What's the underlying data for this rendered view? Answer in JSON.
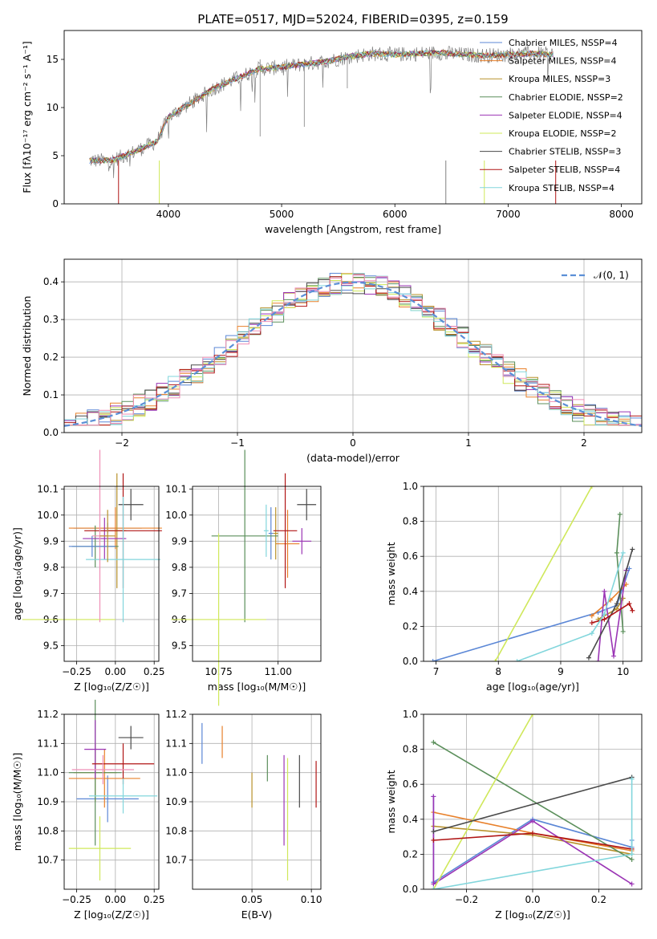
{
  "figure_title": "PLATE=0517, MJD=52024, FIBERID=0395, z=0.159",
  "colors": {
    "series": [
      "#5b87d6",
      "#e8802a",
      "#b8912a",
      "#5b8f5b",
      "#9b35b5",
      "#cfe85a",
      "#4a4a4a",
      "#b01515",
      "#82d6dc"
    ],
    "pink": "#ef8fb6",
    "gray": "#808080",
    "normal_curve": "#5b8fd6"
  },
  "chart_data": [
    {
      "type": "line",
      "title": "PLATE=0517, MJD=52024, FIBERID=0395, z=0.159",
      "xlabel": "wavelength [Angstrom, rest frame]",
      "ylabel": "Flux [fλ10⁻¹⁷ erg cm⁻² s⁻¹ A⁻¹]",
      "xlim": [
        3080,
        8180
      ],
      "ylim": [
        0,
        18
      ],
      "xticks": [
        "4000",
        "5000",
        "6000",
        "7000",
        "8000"
      ],
      "yticks": [
        "0",
        "5",
        "10",
        "15"
      ],
      "legend_position": "top-right",
      "legend": [
        "Chabrier MILES, N_SSP=4",
        "Salpeter MILES, N_SSP=4",
        "Kroupa MILES, N_SSP=3",
        "Chabrier ELODIE, N_SSP=2",
        "Salpeter ELODIE, N_SSP=4",
        "Kroupa ELODIE, N_SSP=2",
        "Chabrier STELIB, N_SSP=3",
        "Salpeter STELIB, N_SSP=4",
        "Kroupa STELIB, N_SSP=4"
      ],
      "spectrum_envelope": {
        "x": [
          3300,
          3500,
          3700,
          3900,
          4000,
          4200,
          4400,
          4600,
          4800,
          5000,
          5200,
          5400,
          5600,
          5800,
          6000,
          6200,
          6400,
          6600,
          6800,
          7000,
          7200,
          7400
        ],
        "y": [
          4.5,
          4.5,
          5.4,
          6.5,
          9.0,
          10.5,
          12.0,
          13.0,
          14.0,
          14.2,
          14.5,
          14.8,
          15.3,
          15.6,
          15.5,
          15.6,
          15.7,
          15.5,
          15.4,
          15.5,
          15.6,
          15.5
        ]
      }
    },
    {
      "type": "bar",
      "title": "",
      "xlabel": "(data-model)/error",
      "ylabel": "Normed distribution",
      "xlim": [
        -2.5,
        2.5
      ],
      "ylim": [
        0,
        0.46
      ],
      "xticks": [
        "−2",
        "−1",
        "0",
        "1",
        "2"
      ],
      "yticks": [
        "0.0",
        "0.1",
        "0.2",
        "0.3",
        "0.4"
      ],
      "legend": [
        "𝒩(0, 1)"
      ],
      "legend_position": "top-right",
      "bin_width": 0.1,
      "curve": "gaussian mean 0 sigma 1"
    },
    {
      "type": "scatter",
      "xlabel": "Z [log₁₀(Z/Z☉)]",
      "ylabel": "age  [log₁₀(age/yr)]",
      "xlim": [
        -0.33,
        0.28
      ],
      "ylim": [
        9.44,
        10.11
      ],
      "xticks": [
        "−0.25",
        "0.00",
        "0.25"
      ],
      "yticks": [
        "9.5",
        "9.6",
        "9.7",
        "9.8",
        "9.9",
        "10.0",
        "10.1"
      ],
      "crosses": [
        {
          "x": -0.05,
          "xerr": 0.22,
          "y": 9.95,
          "yerr": 0.02
        },
        {
          "x": 0.0,
          "xerr": 0.3,
          "y": 9.95,
          "yerr": 0.08
        },
        {
          "x": 0.01,
          "xerr": 0.06,
          "y": 9.94,
          "yerr": 0.22
        },
        {
          "x": -0.13,
          "xerr": 0.15,
          "y": 9.88,
          "yerr": 0.08
        },
        {
          "x": -0.07,
          "xerr": 0.14,
          "y": 9.91,
          "yerr": 0.08
        },
        {
          "x": -0.3,
          "xerr": 0.3,
          "y": 9.6,
          "yerr": 0.0
        },
        {
          "x": 0.1,
          "xerr": 0.08,
          "y": 10.04,
          "yerr": 0.06
        },
        {
          "x": 0.05,
          "xerr": 0.25,
          "y": 9.94,
          "yerr": 0.22
        },
        {
          "x": 0.05,
          "xerr": 0.24,
          "y": 9.83,
          "yerr": 0.24
        },
        {
          "x": -0.1,
          "xerr": 0.05,
          "y": 9.92,
          "yerr": 0.33
        },
        {
          "x": -0.15,
          "xerr": 0.15,
          "y": 9.88,
          "yerr": 0.04
        },
        {
          "x": -0.05,
          "xerr": 0.05,
          "y": 9.92,
          "yerr": 0.1
        }
      ]
    },
    {
      "type": "scatter",
      "xlabel": "mass [log₁₀(M/M☉)]",
      "ylabel": "",
      "xlim": [
        10.64,
        11.18
      ],
      "ylim": [
        9.44,
        10.11
      ],
      "xticks": [
        "10.75",
        "11.00"
      ],
      "yticks": [
        "9.5",
        "9.6",
        "9.7",
        "9.8",
        "9.9",
        "10.0",
        "10.1"
      ],
      "crosses": [
        {
          "x": 10.97,
          "xerr": 0.01,
          "y": 9.93,
          "yerr": 0.1
        },
        {
          "x": 11.04,
          "xerr": 0.05,
          "y": 9.89,
          "yerr": 0.13
        },
        {
          "x": 10.99,
          "xerr": 0.01,
          "y": 9.93,
          "yerr": 0.1
        },
        {
          "x": 10.86,
          "xerr": 0.14,
          "y": 9.92,
          "yerr": 0.33
        },
        {
          "x": 11.1,
          "xerr": 0.04,
          "y": 9.9,
          "yerr": 0.05
        },
        {
          "x": 10.75,
          "xerr": 0.2,
          "y": 9.6,
          "yerr": 0.33
        },
        {
          "x": 11.12,
          "xerr": 0.04,
          "y": 10.04,
          "yerr": 0.06
        },
        {
          "x": 11.03,
          "xerr": 0.05,
          "y": 9.94,
          "yerr": 0.22
        },
        {
          "x": 10.95,
          "xerr": 0.01,
          "y": 9.94,
          "yerr": 0.1
        }
      ]
    },
    {
      "type": "line",
      "xlabel": "age  [log₁₀(age/yr)]",
      "ylabel": "mass weight",
      "xlim": [
        6.8,
        10.3
      ],
      "ylim": [
        0,
        1.0
      ],
      "xticks": [
        "7",
        "8",
        "9",
        "10"
      ],
      "yticks": [
        "0.0",
        "0.2",
        "0.4",
        "0.6",
        "0.8",
        "1.0"
      ],
      "series": [
        {
          "x": [
            6.95,
            9.6,
            9.9,
            10.1
          ],
          "y": [
            0.0,
            0.28,
            0.32,
            0.53
          ]
        },
        {
          "x": [
            9.5,
            9.8,
            10.05
          ],
          "y": [
            0.26,
            0.35,
            0.44
          ]
        },
        {
          "x": [
            9.6,
            9.9,
            10.0
          ],
          "y": [
            0.24,
            0.3,
            0.36
          ]
        },
        {
          "x": [
            9.95,
            9.9,
            10.0
          ],
          "y": [
            0.84,
            0.62,
            0.17
          ]
        },
        {
          "x": [
            9.6,
            9.7,
            9.85,
            10.05
          ],
          "y": [
            0.0,
            0.4,
            0.03,
            0.52
          ]
        },
        {
          "x": [
            7.95,
            9.5
          ],
          "y": [
            0.0,
            1.0
          ]
        },
        {
          "x": [
            9.45,
            9.9,
            10.15
          ],
          "y": [
            0.02,
            0.33,
            0.64
          ]
        },
        {
          "x": [
            9.5,
            9.7,
            10.1,
            10.15
          ],
          "y": [
            0.22,
            0.24,
            0.33,
            0.29
          ]
        },
        {
          "x": [
            8.3,
            9.5,
            9.7,
            10.0
          ],
          "y": [
            0.0,
            0.16,
            0.27,
            0.62
          ]
        }
      ]
    },
    {
      "type": "scatter",
      "xlabel": "Z [log₁₀(Z/Z☉)]",
      "ylabel": "mass [log₁₀(M/M☉)]",
      "xlim": [
        -0.33,
        0.28
      ],
      "ylim": [
        10.6,
        11.2
      ],
      "xticks": [
        "−0.25",
        "0.00",
        "0.25"
      ],
      "yticks": [
        "10.7",
        "10.8",
        "10.9",
        "11.0",
        "11.1",
        "11.2"
      ],
      "crosses": [
        {
          "x": -0.05,
          "xerr": 0.2,
          "y": 10.91,
          "yerr": 0.08
        },
        {
          "x": -0.07,
          "xerr": 0.23,
          "y": 10.98,
          "yerr": 0.1
        },
        {
          "x": -0.13,
          "xerr": 0.14,
          "y": 11.0,
          "yerr": 0.1
        },
        {
          "x": -0.13,
          "xerr": 0.17,
          "y": 11.0,
          "yerr": 0.25
        },
        {
          "x": -0.13,
          "xerr": 0.07,
          "y": 11.08,
          "yerr": 0.1
        },
        {
          "x": -0.1,
          "xerr": 0.2,
          "y": 10.74,
          "yerr": 0.11
        },
        {
          "x": 0.1,
          "xerr": 0.08,
          "y": 11.12,
          "yerr": 0.04
        },
        {
          "x": 0.05,
          "xerr": 0.2,
          "y": 11.03,
          "yerr": 0.07
        },
        {
          "x": 0.05,
          "xerr": 0.22,
          "y": 10.92,
          "yerr": 0.06
        },
        {
          "x": -0.08,
          "xerr": 0.2,
          "y": 11.01,
          "yerr": 0.05
        }
      ]
    },
    {
      "type": "scatter",
      "xlabel": "E(B-V)",
      "ylabel": "",
      "xlim": [
        0.0,
        0.108
      ],
      "ylim": [
        10.6,
        11.2
      ],
      "xticks": [
        "0.05",
        "0.10"
      ],
      "yticks": [
        "10.7",
        "10.8",
        "10.9",
        "11.0",
        "11.1",
        "11.2"
      ],
      "vbars": [
        {
          "x": 0.008,
          "y0": 11.03,
          "y1": 11.17
        },
        {
          "x": 0.025,
          "y0": 11.05,
          "y1": 11.16
        },
        {
          "x": 0.05,
          "y0": 10.88,
          "y1": 11.0
        },
        {
          "x": 0.063,
          "y0": 10.97,
          "y1": 11.06
        },
        {
          "x": 0.077,
          "y0": 10.75,
          "y1": 11.06
        },
        {
          "x": 0.08,
          "y0": 10.63,
          "y1": 11.05
        },
        {
          "x": 0.09,
          "y0": 10.88,
          "y1": 11.06
        },
        {
          "x": 0.104,
          "y0": 10.88,
          "y1": 11.04
        }
      ]
    },
    {
      "type": "line",
      "xlabel": "Z [log₁₀(Z/Z☉)]",
      "ylabel": "mass weight",
      "xlim": [
        -0.33,
        0.33
      ],
      "ylim": [
        0,
        1.0
      ],
      "xticks": [
        "−0.2",
        "0.0",
        "0.2"
      ],
      "yticks": [
        "0.0",
        "0.2",
        "0.4",
        "0.6",
        "0.8",
        "1.0"
      ],
      "series": [
        {
          "x": [
            -0.3,
            -0.3,
            0.0,
            0.3,
            0.3
          ],
          "y": [
            0.53,
            0.04,
            0.4,
            0.24,
            0.28
          ]
        },
        {
          "x": [
            -0.3,
            0.0,
            0.3
          ],
          "y": [
            0.44,
            0.32,
            0.22
          ]
        },
        {
          "x": [
            -0.3,
            0.0,
            0.3
          ],
          "y": [
            0.36,
            0.31,
            0.2
          ]
        },
        {
          "x": [
            -0.3,
            0.3
          ],
          "y": [
            0.84,
            0.17
          ]
        },
        {
          "x": [
            -0.3,
            -0.3,
            0.0,
            0.3
          ],
          "y": [
            0.53,
            0.03,
            0.39,
            0.03
          ]
        },
        {
          "x": [
            -0.3,
            0.0
          ],
          "y": [
            0.0,
            1.0
          ]
        },
        {
          "x": [
            -0.3,
            0.3
          ],
          "y": [
            0.33,
            0.64
          ]
        },
        {
          "x": [
            -0.3,
            0.0,
            0.3
          ],
          "y": [
            0.28,
            0.32,
            0.23
          ]
        },
        {
          "x": [
            -0.3,
            0.3,
            0.3
          ],
          "y": [
            0.0,
            0.2,
            0.63
          ]
        }
      ]
    }
  ]
}
